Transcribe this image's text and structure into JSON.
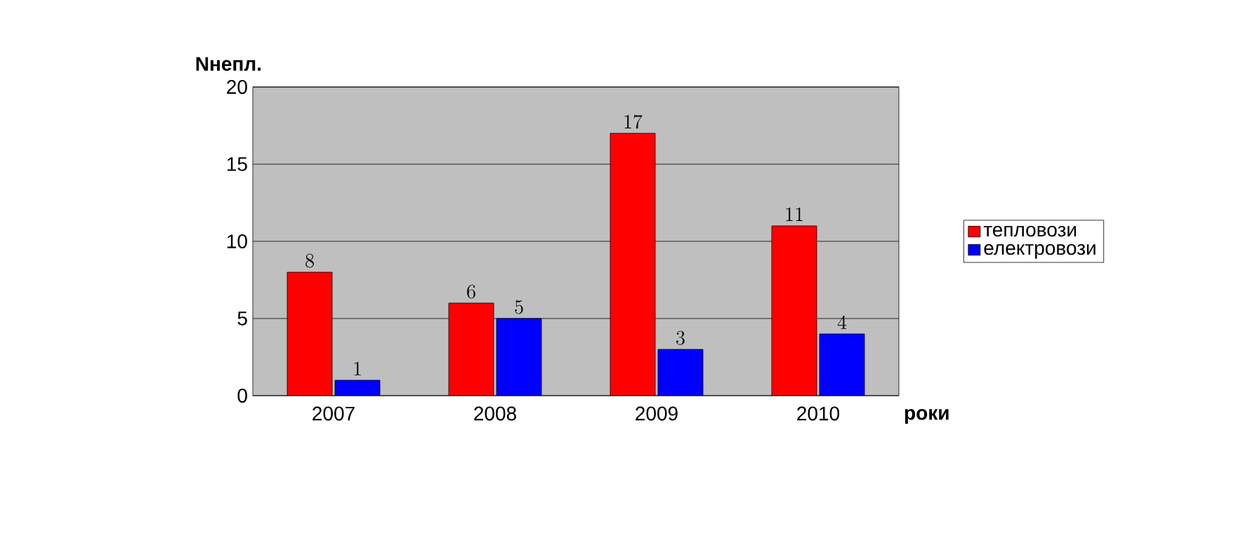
{
  "chart_data": {
    "type": "bar",
    "xlabel": "роки",
    "ylabel": "Nнепл.",
    "categories": [
      "2007",
      "2008",
      "2009",
      "2010"
    ],
    "series": [
      {
        "name": "тепловози",
        "color": "#ff0000",
        "values": [
          8,
          6,
          17,
          11
        ]
      },
      {
        "name": "електровози",
        "color": "#0000ff",
        "values": [
          1,
          5,
          3,
          4
        ]
      }
    ],
    "ylim": [
      0,
      20
    ],
    "yticks": [
      0,
      5,
      10,
      15,
      20
    ],
    "grid": "y",
    "legend": "right",
    "data_labels": true
  }
}
